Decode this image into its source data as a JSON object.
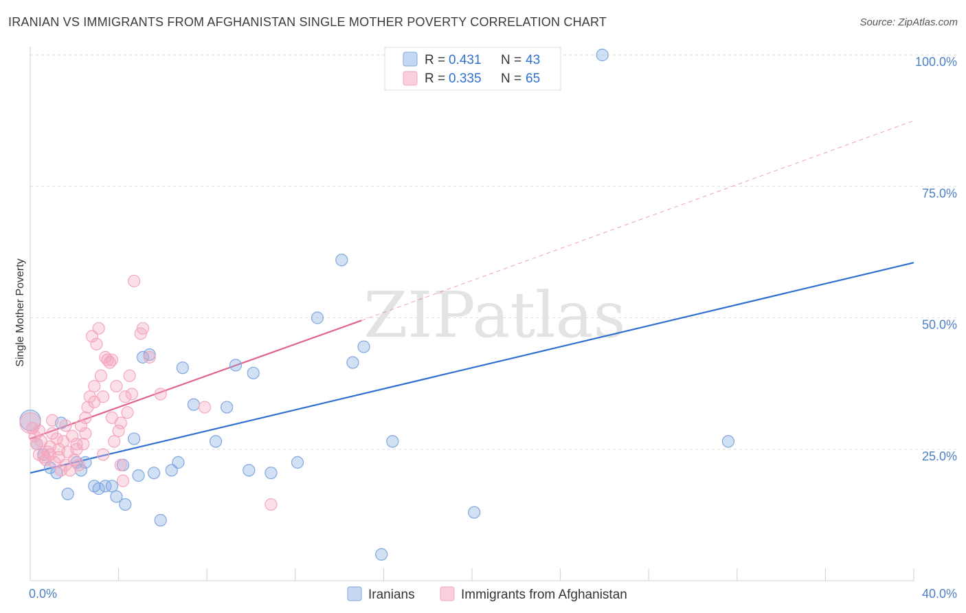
{
  "chart_data": {
    "type": "scatter",
    "title": "IRANIAN VS IMMIGRANTS FROM AFGHANISTAN SINGLE MOTHER POVERTY CORRELATION CHART",
    "source": "Source: ZipAtlas.com",
    "watermark": "ZIPatlas",
    "xlabel": "",
    "ylabel": "Single Mother Poverty",
    "xlim": [
      0,
      40
    ],
    "ylim": [
      0,
      100
    ],
    "x_ticks": [
      {
        "value": 0,
        "label": "0.0%"
      },
      {
        "value": 40,
        "label": "40.0%"
      }
    ],
    "y_ticks": [
      {
        "value": 25,
        "label": "25.0%"
      },
      {
        "value": 50,
        "label": "50.0%"
      },
      {
        "value": 75,
        "label": "75.0%"
      },
      {
        "value": 100,
        "label": "100.0%"
      }
    ],
    "legend": {
      "position": "top-center",
      "rows": [
        {
          "r_label": "R =",
          "r_value": "0.431",
          "n_label": "N =",
          "n_value": "43"
        },
        {
          "r_label": "R =",
          "r_value": "0.335",
          "n_label": "N =",
          "n_value": "65"
        }
      ]
    },
    "series": [
      {
        "name": "Iranians",
        "color": "#7ea6e0",
        "line_color": "#2f6fcf",
        "trend": {
          "x0": 0,
          "y0": 20.5,
          "x1": 40,
          "y1": 60.5,
          "dashed_to": null
        },
        "points": [
          [
            0,
            30.5
          ],
          [
            0.3,
            26
          ],
          [
            0.6,
            24
          ],
          [
            0.9,
            21.5
          ],
          [
            1.2,
            20.5
          ],
          [
            1.4,
            30
          ],
          [
            1.7,
            16.5
          ],
          [
            2.1,
            22.5
          ],
          [
            2.3,
            21
          ],
          [
            2.5,
            22.5
          ],
          [
            2.9,
            18
          ],
          [
            3.1,
            17.5
          ],
          [
            3.4,
            18
          ],
          [
            3.7,
            18
          ],
          [
            3.9,
            16
          ],
          [
            4.2,
            22
          ],
          [
            4.3,
            14.5
          ],
          [
            4.7,
            27
          ],
          [
            4.9,
            20
          ],
          [
            5.1,
            42.5
          ],
          [
            5.4,
            43
          ],
          [
            5.6,
            20.5
          ],
          [
            5.9,
            11.5
          ],
          [
            6.4,
            21
          ],
          [
            6.7,
            22.5
          ],
          [
            6.9,
            40.5
          ],
          [
            7.4,
            33.5
          ],
          [
            8.4,
            26.5
          ],
          [
            8.9,
            33
          ],
          [
            9.3,
            41
          ],
          [
            9.9,
            21
          ],
          [
            10.1,
            39.5
          ],
          [
            10.9,
            20.5
          ],
          [
            12.1,
            22.5
          ],
          [
            13.0,
            50
          ],
          [
            14.1,
            61
          ],
          [
            14.6,
            41.5
          ],
          [
            15.1,
            44.5
          ],
          [
            15.9,
            5
          ],
          [
            16.4,
            26.5
          ],
          [
            20.1,
            13
          ],
          [
            25.9,
            100
          ],
          [
            31.6,
            26.5
          ]
        ]
      },
      {
        "name": "Immigrants from Afghanistan",
        "color": "#f4a6bd",
        "line_color": "#e0608e",
        "trend": {
          "x0": 0,
          "y0": 27,
          "x1": 15,
          "y1": 49.5,
          "dashed_to": {
            "x": 40,
            "y": 87.5
          }
        },
        "points": [
          [
            0,
            30
          ],
          [
            0.1,
            29
          ],
          [
            0.2,
            27.5
          ],
          [
            0.3,
            26
          ],
          [
            0.4,
            24
          ],
          [
            0.5,
            26.5
          ],
          [
            0.6,
            23.5
          ],
          [
            0.7,
            23
          ],
          [
            0.8,
            24.5
          ],
          [
            0.9,
            25.5
          ],
          [
            1.0,
            28
          ],
          [
            1.0,
            30.5
          ],
          [
            1.1,
            22.5
          ],
          [
            1.2,
            27
          ],
          [
            1.3,
            25
          ],
          [
            1.4,
            21
          ],
          [
            1.5,
            26.5
          ],
          [
            1.6,
            29.5
          ],
          [
            1.7,
            24.5
          ],
          [
            1.8,
            21
          ],
          [
            1.9,
            27.5
          ],
          [
            2.0,
            23
          ],
          [
            2.1,
            25
          ],
          [
            2.2,
            22
          ],
          [
            2.3,
            29.5
          ],
          [
            2.4,
            26
          ],
          [
            2.5,
            31
          ],
          [
            2.6,
            33
          ],
          [
            2.7,
            35
          ],
          [
            2.8,
            46.5
          ],
          [
            2.9,
            37
          ],
          [
            3.0,
            45
          ],
          [
            3.1,
            48
          ],
          [
            3.2,
            39
          ],
          [
            3.3,
            35
          ],
          [
            3.4,
            42.5
          ],
          [
            3.5,
            42
          ],
          [
            3.6,
            41.5
          ],
          [
            3.7,
            31
          ],
          [
            3.8,
            26.5
          ],
          [
            3.9,
            37
          ],
          [
            4.0,
            28.5
          ],
          [
            4.1,
            22
          ],
          [
            4.2,
            19
          ],
          [
            4.3,
            35
          ],
          [
            4.4,
            32
          ],
          [
            4.5,
            39
          ],
          [
            4.6,
            35.5
          ],
          [
            4.7,
            57
          ],
          [
            5.0,
            47
          ],
          [
            5.1,
            48
          ],
          [
            5.4,
            42.5
          ],
          [
            5.9,
            35.5
          ],
          [
            7.9,
            33
          ],
          [
            10.9,
            14.5
          ],
          [
            0.4,
            28.5
          ],
          [
            0.9,
            24
          ],
          [
            1.6,
            22
          ],
          [
            2.1,
            26
          ],
          [
            2.5,
            28
          ],
          [
            2.9,
            34
          ],
          [
            3.3,
            24
          ],
          [
            3.7,
            42
          ],
          [
            4.1,
            30
          ],
          [
            1.3,
            23.5
          ]
        ]
      }
    ]
  }
}
